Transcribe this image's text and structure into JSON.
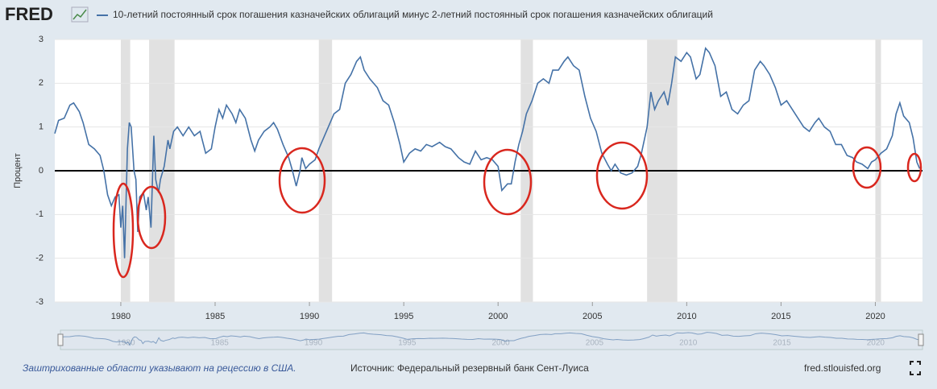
{
  "chart_data": {
    "type": "line",
    "logo": "FRED",
    "title": "10-летний постоянный срок погашения казначейских облигаций минус 2-летний постоянный срок погашения казначейских облигаций",
    "ylabel": "Процент",
    "note": "Заштрихованные области указывают на рецессию в США.",
    "source": "Источник: Федеральный резервный банк Сент-Луиса",
    "site": "fred.stlouisfed.org",
    "xlim": [
      1976.5,
      2022.5
    ],
    "xticks": [
      1980,
      1985,
      1990,
      1995,
      2000,
      2005,
      2010,
      2015,
      2020
    ],
    "ylim": [
      -3,
      3
    ],
    "yticks": [
      -3,
      -2,
      -1,
      0,
      1,
      2,
      3
    ],
    "grid": true,
    "recessions": [
      [
        1980.0,
        1980.5
      ],
      [
        1981.5,
        1982.85
      ],
      [
        1990.5,
        1991.2
      ],
      [
        2001.2,
        2001.85
      ],
      [
        2007.9,
        2009.5
      ],
      [
        2020.0,
        2020.3
      ]
    ],
    "recession_color": "#e1e1e1",
    "series": [
      {
        "name": "10-летний постоянный срок погашения казначейских облигаций минус 2-летний постоянный срок погашения казначейских облигаций",
        "color": "#4572a7",
        "x": [
          1976.5,
          1976.7,
          1977.0,
          1977.3,
          1977.5,
          1977.8,
          1978.0,
          1978.3,
          1978.6,
          1978.9,
          1979.1,
          1979.3,
          1979.5,
          1979.7,
          1979.9,
          1980.0,
          1980.1,
          1980.2,
          1980.35,
          1980.45,
          1980.55,
          1980.7,
          1980.8,
          1980.9,
          1981.0,
          1981.2,
          1981.35,
          1981.45,
          1981.6,
          1981.75,
          1981.85,
          1982.0,
          1982.1,
          1982.3,
          1982.5,
          1982.6,
          1982.8,
          1983.0,
          1983.3,
          1983.6,
          1983.9,
          1984.2,
          1984.5,
          1984.8,
          1985.0,
          1985.2,
          1985.4,
          1985.6,
          1985.9,
          1986.1,
          1986.3,
          1986.6,
          1986.9,
          1987.1,
          1987.3,
          1987.6,
          1987.9,
          1988.1,
          1988.3,
          1988.6,
          1988.9,
          1989.1,
          1989.3,
          1989.5,
          1989.6,
          1989.8,
          1990.0,
          1990.3,
          1990.5,
          1990.8,
          1991.0,
          1991.3,
          1991.6,
          1991.9,
          1992.2,
          1992.5,
          1992.7,
          1992.9,
          1993.2,
          1993.6,
          1993.9,
          1994.2,
          1994.5,
          1994.8,
          1995.0,
          1995.3,
          1995.6,
          1995.9,
          1996.2,
          1996.5,
          1996.9,
          1997.2,
          1997.5,
          1997.9,
          1998.2,
          1998.5,
          1998.8,
          1999.1,
          1999.4,
          1999.7,
          2000.0,
          2000.2,
          2000.5,
          2000.7,
          2000.9,
          2001.1,
          2001.3,
          2001.5,
          2001.8,
          2002.1,
          2002.4,
          2002.7,
          2002.9,
          2003.2,
          2003.5,
          2003.7,
          2004.0,
          2004.3,
          2004.6,
          2004.9,
          2005.2,
          2005.5,
          2005.8,
          2006.0,
          2006.2,
          2006.5,
          2006.8,
          2007.1,
          2007.4,
          2007.6,
          2007.9,
          2008.1,
          2008.3,
          2008.5,
          2008.8,
          2009.0,
          2009.2,
          2009.4,
          2009.7,
          2010.0,
          2010.2,
          2010.5,
          2010.7,
          2011.0,
          2011.2,
          2011.5,
          2011.8,
          2012.1,
          2012.4,
          2012.7,
          2013.0,
          2013.3,
          2013.6,
          2013.9,
          2014.1,
          2014.4,
          2014.7,
          2015.0,
          2015.3,
          2015.6,
          2015.9,
          2016.2,
          2016.5,
          2016.8,
          2017.0,
          2017.3,
          2017.6,
          2017.9,
          2018.2,
          2018.5,
          2018.8,
          2019.0,
          2019.3,
          2019.6,
          2019.8,
          2020.0,
          2020.3,
          2020.6,
          2020.9,
          2021.1,
          2021.3,
          2021.5,
          2021.8,
          2022.0,
          2022.2,
          2022.35
        ],
        "values": [
          0.85,
          1.15,
          1.2,
          1.5,
          1.55,
          1.35,
          1.1,
          0.6,
          0.5,
          0.35,
          0.0,
          -0.55,
          -0.8,
          -0.6,
          -0.55,
          -1.3,
          -0.8,
          -2.0,
          0.5,
          1.1,
          1.0,
          0.0,
          -0.2,
          -1.4,
          -0.6,
          -0.5,
          -0.9,
          -0.6,
          -1.3,
          0.8,
          -0.2,
          -0.5,
          -0.2,
          0.1,
          0.7,
          0.5,
          0.9,
          1.0,
          0.8,
          1.0,
          0.8,
          0.9,
          0.4,
          0.5,
          1.0,
          1.4,
          1.2,
          1.5,
          1.3,
          1.1,
          1.4,
          1.2,
          0.7,
          0.45,
          0.7,
          0.9,
          1.0,
          1.1,
          0.95,
          0.6,
          0.3,
          0.0,
          -0.35,
          0.0,
          0.3,
          0.05,
          0.15,
          0.25,
          0.5,
          0.8,
          1.0,
          1.3,
          1.4,
          2.0,
          2.2,
          2.5,
          2.6,
          2.3,
          2.1,
          1.9,
          1.6,
          1.5,
          1.1,
          0.6,
          0.2,
          0.4,
          0.5,
          0.45,
          0.6,
          0.55,
          0.65,
          0.55,
          0.5,
          0.3,
          0.2,
          0.15,
          0.45,
          0.25,
          0.3,
          0.25,
          0.1,
          -0.45,
          -0.3,
          -0.3,
          0.2,
          0.6,
          0.9,
          1.3,
          1.6,
          2.0,
          2.1,
          2.0,
          2.3,
          2.3,
          2.5,
          2.6,
          2.4,
          2.3,
          1.7,
          1.2,
          0.9,
          0.4,
          0.15,
          0.0,
          0.15,
          -0.05,
          -0.1,
          -0.05,
          0.1,
          0.4,
          1.0,
          1.8,
          1.4,
          1.6,
          1.8,
          1.5,
          2.0,
          2.6,
          2.5,
          2.7,
          2.6,
          2.1,
          2.2,
          2.8,
          2.7,
          2.4,
          1.7,
          1.8,
          1.4,
          1.3,
          1.5,
          1.6,
          2.3,
          2.5,
          2.4,
          2.2,
          1.9,
          1.5,
          1.6,
          1.4,
          1.2,
          1.0,
          0.9,
          1.1,
          1.2,
          1.0,
          0.9,
          0.6,
          0.6,
          0.35,
          0.3,
          0.2,
          0.15,
          0.05,
          0.2,
          0.25,
          0.4,
          0.5,
          0.8,
          1.3,
          1.55,
          1.25,
          1.1,
          0.75,
          0.2,
          0.05
        ]
      }
    ]
  }
}
